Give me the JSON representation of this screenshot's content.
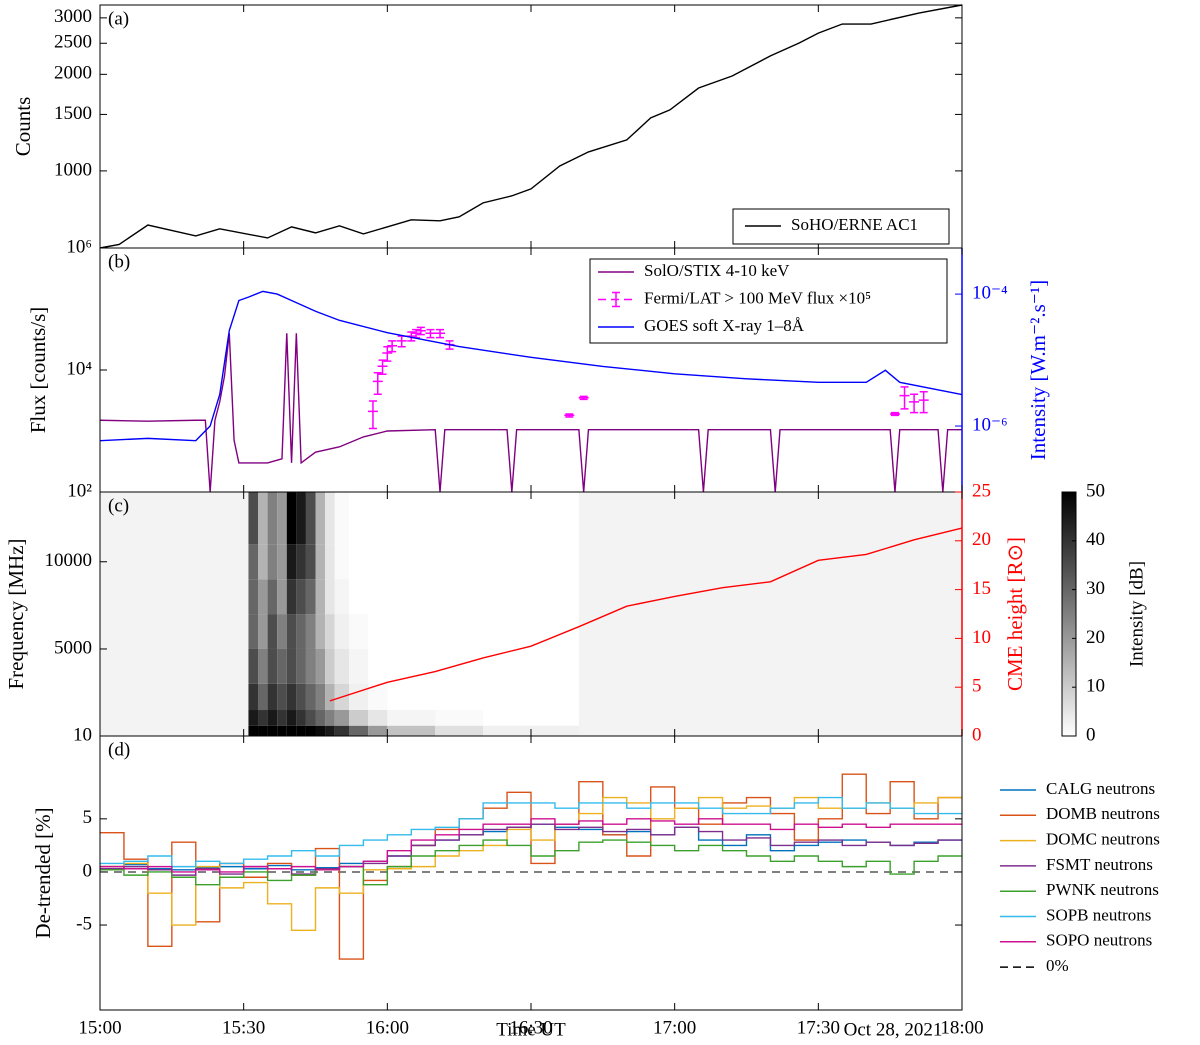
{
  "chart_data": [
    {
      "type": "line",
      "panel_label": "(a)",
      "ylabel": "Counts",
      "ylog": true,
      "xlim": [
        "15:00",
        "18:00"
      ],
      "ylim": [
        575,
        3290
      ],
      "yticks": [
        1000,
        1500,
        2000,
        2500,
        3000
      ],
      "legend": "lower right",
      "series": [
        {
          "name": "SoHO/ERNE AC1",
          "color": "#000000",
          "x": [
            "15:00",
            "15:04",
            "15:10",
            "15:20",
            "15:25",
            "15:35",
            "15:40",
            "15:45",
            "15:50",
            "15:55",
            "16:05",
            "16:11",
            "16:15",
            "16:20",
            "16:26",
            "16:30",
            "16:36",
            "16:42",
            "16:50",
            "16:55",
            "16:59",
            "17:05",
            "17:12",
            "17:20",
            "17:26",
            "17:30",
            "17:35",
            "17:41",
            "17:51",
            "18:00"
          ],
          "values": [
            575,
            590,
            678,
            627,
            660,
            618,
            669,
            641,
            674,
            636,
            704,
            699,
            719,
            795,
            836,
            879,
            1036,
            1146,
            1249,
            1463,
            1549,
            1813,
            1976,
            2283,
            2504,
            2689,
            2870,
            2870,
            3106,
            3290
          ]
        }
      ]
    },
    {
      "type": "line",
      "panel_label": "(b)",
      "ylabel": "Flux [counts/s]",
      "y2label": "Intensity [W.m⁻².s⁻¹]",
      "y2color": "#0000ff",
      "ylog": true,
      "y2log": true,
      "xlim": [
        "15:00",
        "18:00"
      ],
      "ylim": [
        100,
        1000000
      ],
      "yticks": [
        {
          "value": 100,
          "label": "10²"
        },
        {
          "value": 10000,
          "label": "10⁴"
        },
        {
          "value": 1000000,
          "label": "10⁶"
        }
      ],
      "y2lim": [
        1e-07,
        0.0005
      ],
      "y2ticks": [
        {
          "value": 1e-06,
          "label": "10⁻⁶"
        },
        {
          "value": 0.0001,
          "label": "10⁻⁴"
        }
      ],
      "legend": "upper right",
      "series": [
        {
          "name": "SolO/STIX 4-10 keV",
          "color": "#800080",
          "x": [
            "15:00",
            "15:10",
            "15:20",
            "15:22",
            "15:23",
            "15:24",
            "15:25",
            "15:26",
            "15:27",
            "15:28",
            "15:29",
            "15:35",
            "15:38",
            "15:39",
            "15:40",
            "15:41",
            "15:42",
            "15:45",
            "15:50",
            "15:55",
            "16:00",
            "16:10",
            "16:11",
            "16:12",
            "16:25",
            "16:26",
            "16:27",
            "16:40",
            "16:41",
            "16:42",
            "17:05",
            "17:06",
            "17:07",
            "17:20",
            "17:21",
            "17:22",
            "17:45",
            "17:46",
            "17:47",
            "17:55",
            "17:56",
            "17:57",
            "18:00"
          ],
          "values": [
            1500,
            1450,
            1500,
            1500,
            100,
            1500,
            3000,
            8000,
            40000,
            700,
            300,
            300,
            350,
            40000,
            300,
            40000,
            300,
            450,
            550,
            800,
            1000,
            1050,
            100,
            1050,
            1050,
            100,
            1050,
            1050,
            100,
            1050,
            1050,
            100,
            1050,
            1050,
            100,
            1050,
            1050,
            100,
            1050,
            1050,
            100,
            1050,
            1050
          ]
        },
        {
          "name": "Fermi/LAT  > 100 MeV flux  ×10⁵",
          "color": "#ff00ff",
          "x": [
            "15:57",
            "15:58",
            "15:59",
            "16:00",
            "16:01",
            "16:03",
            "16:05",
            "16:06",
            "16:07",
            "16:09",
            "16:11",
            "16:13",
            "16:38",
            "16:41",
            "17:46",
            "17:48",
            "17:50",
            "17:52"
          ],
          "values": [
            2100,
            6500,
            11500,
            19000,
            25000,
            30000,
            36000,
            40000,
            44000,
            40000,
            40000,
            26000,
            1800,
            3500,
            1900,
            3800,
            3000,
            3200
          ],
          "errors": [
            1000,
            2500,
            3000,
            5000,
            5000,
            6000,
            6000,
            6000,
            6000,
            6000,
            6000,
            4000,
            100,
            200,
            100,
            1500,
            1000,
            1200
          ]
        },
        {
          "name": "GOES soft X-ray 1–8Å",
          "color": "#0000ff",
          "axis": "y2",
          "x": [
            "15:00",
            "15:10",
            "15:20",
            "15:23",
            "15:25",
            "15:27",
            "15:29",
            "15:31",
            "15:34",
            "15:37",
            "15:40",
            "15:45",
            "15:50",
            "16:00",
            "16:15",
            "16:30",
            "16:45",
            "17:00",
            "17:15",
            "17:30",
            "17:40",
            "17:44",
            "17:47",
            "18:00"
          ],
          "values": [
            6e-07,
            6.5e-07,
            6e-07,
            1e-06,
            3e-06,
            2.8e-05,
            8e-05,
            9e-05,
            0.00011,
            0.0001,
            8e-05,
            5.5e-05,
            4e-05,
            2.6e-05,
            1.6e-05,
            1.1e-05,
            8e-06,
            6.2e-06,
            5.2e-06,
            4.6e-06,
            4.6e-06,
            7e-06,
            4.6e-06,
            3e-06
          ]
        }
      ]
    },
    {
      "type": "heatmap",
      "panel_label": "(c)",
      "ylabel": "Frequency [MHz]",
      "y2label": "CME height [R⊙]",
      "y2color": "#ff0000",
      "xlim": [
        "15:00",
        "18:00"
      ],
      "ylim": [
        10,
        14000
      ],
      "yticks": [
        10,
        5000,
        10000
      ],
      "y2lim": [
        0,
        25
      ],
      "y2ticks": [
        0,
        5,
        10,
        15,
        20,
        25
      ],
      "heatmap": {
        "time_edges": [
          "15:31",
          "15:33",
          "15:35",
          "15:37",
          "15:39",
          "15:41",
          "15:43",
          "15:45",
          "15:47",
          "15:49",
          "15:52",
          "15:56",
          "16:00",
          "16:10",
          "16:20",
          "16:40"
        ],
        "freq_edges": [
          10,
          600,
          1500,
          3000,
          5000,
          7000,
          9000,
          11000,
          14000
        ],
        "intensity": [
          [
            50,
            50,
            50,
            50,
            50,
            50,
            50,
            48,
            45,
            40,
            30,
            20,
            12,
            6,
            3
          ],
          [
            45,
            40,
            45,
            40,
            45,
            40,
            35,
            30,
            25,
            20,
            10,
            5,
            2,
            1,
            0
          ],
          [
            40,
            30,
            40,
            35,
            40,
            35,
            30,
            25,
            15,
            8,
            3,
            1,
            0,
            0,
            0
          ],
          [
            35,
            25,
            35,
            30,
            35,
            30,
            25,
            20,
            10,
            5,
            2,
            0,
            0,
            0,
            0
          ],
          [
            30,
            20,
            35,
            25,
            35,
            30,
            25,
            15,
            8,
            3,
            1,
            0,
            0,
            0,
            0
          ],
          [
            30,
            20,
            30,
            20,
            40,
            35,
            30,
            15,
            5,
            2,
            0,
            0,
            0,
            0,
            0
          ],
          [
            30,
            15,
            25,
            20,
            45,
            40,
            35,
            15,
            5,
            1,
            0,
            0,
            0,
            0,
            0
          ],
          [
            35,
            15,
            25,
            20,
            50,
            45,
            35,
            15,
            5,
            1,
            0,
            0,
            0,
            0,
            0
          ]
        ]
      },
      "colorbar": {
        "label": "Intensity [dB]",
        "lim": [
          0,
          50
        ],
        "ticks": [
          0,
          10,
          20,
          30,
          40,
          50
        ]
      },
      "series": [
        {
          "name": "CME height",
          "color": "#ff0000",
          "axis": "y2",
          "x": [
            "15:48",
            "16:00",
            "16:10",
            "16:20",
            "16:30",
            "16:40",
            "16:50",
            "17:00",
            "17:10",
            "17:20",
            "17:30",
            "17:40",
            "17:50",
            "18:00"
          ],
          "values": [
            3.6,
            5.5,
            6.6,
            8.0,
            9.2,
            11.2,
            13.3,
            14.3,
            15.2,
            15.8,
            18.0,
            18.6,
            20.1,
            21.3
          ]
        }
      ]
    },
    {
      "type": "step",
      "panel_label": "(d)",
      "ylabel": "De-trended [%]",
      "xlabel": "Time UT",
      "annotation": "Oct 28, 2021",
      "xlim": [
        "15:00",
        "18:00"
      ],
      "xticks": [
        "15:00",
        "15:30",
        "16:00",
        "16:30",
        "17:00",
        "17:30",
        "18:00"
      ],
      "ylim": [
        -13,
        12.8
      ],
      "yticks": [
        -5,
        0,
        5
      ],
      "legend": "outside right",
      "reference_line": {
        "value": 0,
        "name": "0%",
        "color": "#000000"
      },
      "x": [
        "15:00",
        "15:05",
        "15:10",
        "15:15",
        "15:20",
        "15:25",
        "15:30",
        "15:35",
        "15:40",
        "15:45",
        "15:50",
        "15:55",
        "16:00",
        "16:05",
        "16:10",
        "16:15",
        "16:20",
        "16:25",
        "16:30",
        "16:35",
        "16:40",
        "16:45",
        "16:50",
        "16:55",
        "17:00",
        "17:05",
        "17:10",
        "17:15",
        "17:20",
        "17:25",
        "17:30",
        "17:35",
        "17:40",
        "17:45",
        "17:50",
        "17:55"
      ],
      "series": [
        {
          "name": "CALG neutrons",
          "color": "#0072bd",
          "values": [
            0.5,
            0.7,
            0.3,
            0.2,
            0.4,
            0.5,
            0.3,
            0.6,
            0.2,
            0.4,
            0.8,
            1.0,
            1.5,
            2.5,
            3.0,
            3.5,
            3.8,
            4.2,
            4.5,
            4.2,
            4.0,
            3.5,
            3.8,
            3.5,
            4.2,
            3.0,
            2.5,
            3.5,
            2.0,
            2.5,
            2.8,
            3.0,
            2.8,
            2.5,
            2.8,
            3.0
          ]
        },
        {
          "name": "DOMB neutrons",
          "color": "#d95319",
          "values": [
            3.7,
            1.2,
            -7.0,
            2.8,
            -4.7,
            0.8,
            -0.5,
            0.8,
            -0.3,
            2.2,
            -8.2,
            -0.8,
            0.5,
            2.5,
            4.0,
            5.0,
            6.0,
            7.5,
            0.8,
            4.5,
            8.5,
            3.5,
            1.5,
            8.0,
            6.0,
            4.5,
            6.5,
            7.0,
            5.5,
            3.0,
            5.0,
            9.2,
            5.5,
            8.5,
            5.0,
            7.0
          ]
        },
        {
          "name": "DOMC neutrons",
          "color": "#edb120",
          "values": [
            0.5,
            0.8,
            -2.0,
            -5.0,
            0.5,
            -1.5,
            -1.0,
            -3.0,
            -5.5,
            -1.5,
            -2.0,
            0.2,
            0.3,
            0.5,
            1.5,
            2.0,
            2.5,
            4.0,
            3.0,
            4.5,
            5.5,
            7.0,
            6.5,
            5.0,
            6.0,
            7.0,
            6.0,
            6.2,
            6.0,
            7.0,
            6.0,
            6.0,
            6.5,
            6.0,
            6.5,
            7.0
          ]
        },
        {
          "name": "FSMT neutrons",
          "color": "#7e2f8e",
          "values": [
            0.3,
            0.5,
            0.2,
            -0.3,
            0.3,
            -0.2,
            0.5,
            0.3,
            -0.2,
            0.3,
            0.5,
            0.8,
            1.5,
            2.5,
            3.0,
            3.5,
            4.0,
            4.2,
            4.5,
            4.0,
            4.2,
            3.8,
            4.0,
            3.5,
            4.2,
            3.8,
            3.0,
            3.2,
            2.5,
            2.8,
            3.0,
            2.5,
            2.8,
            2.5,
            2.7,
            3.0
          ]
        },
        {
          "name": "PWNK neutrons",
          "color": "#3ca02c",
          "values": [
            0.2,
            -0.3,
            0.0,
            -0.5,
            -1.2,
            -0.5,
            0.0,
            -0.8,
            -0.3,
            0.2,
            0.5,
            -1.2,
            0.5,
            1.5,
            2.0,
            2.5,
            3.0,
            2.5,
            1.5,
            2.0,
            2.8,
            3.0,
            2.8,
            2.5,
            2.0,
            2.5,
            2.0,
            1.5,
            1.0,
            1.5,
            1.0,
            0.5,
            1.0,
            -0.2,
            1.0,
            1.5
          ]
        },
        {
          "name": "SOPB neutrons",
          "color": "#33bbee",
          "values": [
            0.8,
            1.0,
            1.5,
            0.5,
            1.0,
            0.8,
            1.2,
            1.5,
            2.0,
            1.5,
            2.5,
            3.0,
            3.5,
            4.0,
            4.2,
            5.0,
            6.5,
            6.5,
            6.5,
            6.0,
            6.5,
            6.5,
            6.0,
            6.5,
            6.5,
            6.0,
            5.5,
            5.5,
            6.0,
            6.5,
            7.0,
            6.0,
            6.5,
            6.0,
            5.5,
            5.5
          ]
        },
        {
          "name": "SOPO neutrons",
          "color": "#cc1090",
          "values": [
            0.5,
            0.3,
            0.5,
            0.0,
            0.2,
            0.0,
            0.5,
            0.3,
            0.5,
            0.2,
            0.5,
            1.0,
            2.0,
            3.0,
            3.5,
            4.0,
            4.5,
            4.5,
            5.0,
            4.5,
            4.8,
            4.5,
            5.0,
            4.8,
            4.5,
            5.0,
            4.5,
            4.5,
            4.0,
            4.5,
            4.2,
            4.5,
            4.2,
            4.5,
            4.5,
            4.5
          ]
        }
      ]
    }
  ]
}
